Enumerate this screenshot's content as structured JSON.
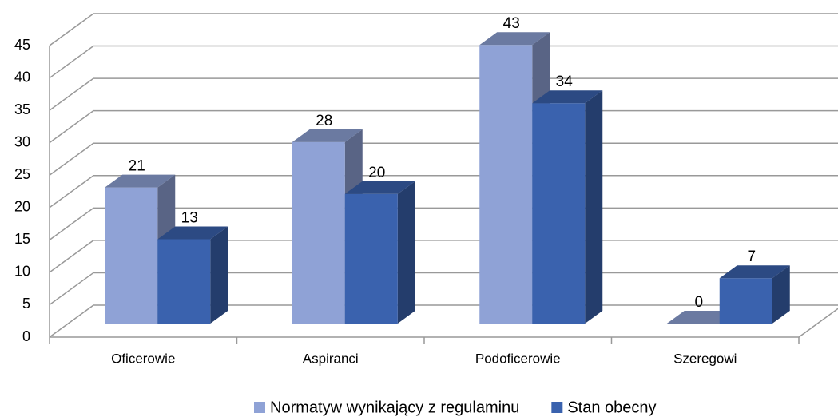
{
  "chart_data": {
    "type": "bar3d",
    "categories": [
      "Oficerowie",
      "Aspiranci",
      "Podoficerowie",
      "Szeregowi"
    ],
    "series": [
      {
        "name": "Normatyw wynikający z regulaminu",
        "color": "#8fa2d6",
        "values": [
          21,
          28,
          43,
          0
        ]
      },
      {
        "name": "Stan obecny",
        "color": "#3a62ae",
        "values": [
          13,
          20,
          34,
          7
        ]
      }
    ],
    "ylim": [
      0,
      45
    ],
    "yticks": [
      0,
      5,
      10,
      15,
      20,
      25,
      30,
      35,
      40,
      45
    ],
    "grid": true,
    "legend": "bottom"
  }
}
